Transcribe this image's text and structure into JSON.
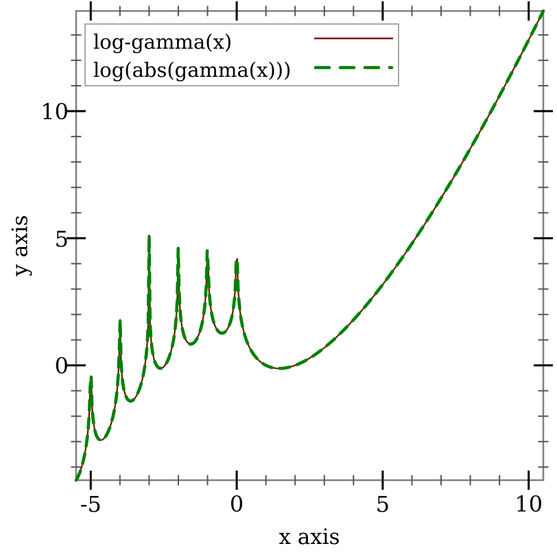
{
  "page": {
    "background": "#ffffff"
  },
  "chart_data": {
    "type": "line",
    "title": "",
    "xlabel": "x axis",
    "ylabel": "y axis",
    "xlim": [
      -5.5,
      10.5
    ],
    "ylim": [
      -4.518,
      13.941
    ],
    "grid": false,
    "axis": {
      "frame_color": "#808080",
      "major_tick_color": "#000000",
      "minor_tick_color": "#555555",
      "tick_label_color": "#000000"
    },
    "x_ticks": {
      "major": [
        {
          "value": -5,
          "label": "-5"
        },
        {
          "value": 0,
          "label": "0"
        },
        {
          "value": 5,
          "label": "5"
        },
        {
          "value": 10,
          "label": "10"
        }
      ],
      "minor": [
        -4,
        -3,
        -2,
        -1,
        1,
        2,
        3,
        4,
        6,
        7,
        8,
        9
      ]
    },
    "y_ticks": {
      "major": [
        {
          "value": 0,
          "label": "0"
        },
        {
          "value": 5,
          "label": "5"
        },
        {
          "value": 10,
          "label": "10"
        }
      ],
      "minor": [
        -4,
        -3,
        -2,
        -1,
        1,
        2,
        3,
        4,
        6,
        7,
        8,
        9,
        11,
        12,
        13
      ]
    },
    "legend": {
      "position": "top-left",
      "border_color": "#aaaaaa",
      "background": "#ffffff"
    },
    "series": [
      {
        "name": "log-gamma",
        "label": "log-gamma(x)",
        "function": "log-gamma(x)",
        "color": "#8b0000",
        "line_style": "solid",
        "line_width": 2.2,
        "domain": [
          -5.5,
          10.5
        ],
        "samples": 500
      },
      {
        "name": "log-abs-gamma",
        "label": "log(abs(gamma(x)))",
        "function": "log(abs(gamma(x)))",
        "color": "#008000",
        "line_style": "long-dash",
        "line_width": 4.6,
        "domain": [
          -5.5,
          10.5
        ],
        "samples": 500
      }
    ],
    "key_points": {
      "pole_spike_peaks": [
        {
          "x": -5,
          "y": -0.44
        },
        {
          "x": -4,
          "y": 1.81
        },
        {
          "x": -3,
          "y": 5.11
        },
        {
          "x": -2,
          "y": 4.51
        },
        {
          "x": -1,
          "y": 4.45
        },
        {
          "x": 0,
          "y": 4.24
        }
      ],
      "local_minima": [
        {
          "x": -4.5,
          "y": -2.81
        },
        {
          "x": -3.5,
          "y": -1.31
        },
        {
          "x": -2.5,
          "y": -0.06
        },
        {
          "x": -1.5,
          "y": 0.86
        },
        {
          "x": -0.5,
          "y": 1.27
        },
        {
          "x": 1.46,
          "y": -0.12
        }
      ],
      "endpoints": [
        {
          "x": -5.5,
          "y": -4.52
        },
        {
          "x": 10.5,
          "y": 13.94
        }
      ]
    }
  }
}
